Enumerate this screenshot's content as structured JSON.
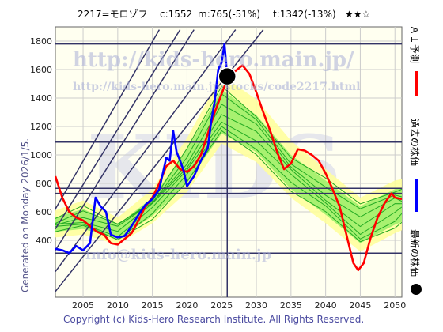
{
  "header": {
    "code_name": "2217=モロゾフ",
    "current": "c:1552",
    "min": "m:765(-51%)",
    "target": "t:1342(-13%)",
    "rating": "★★☆"
  },
  "side_text": "Generated on Monday 2026/1/5.",
  "footer": "Copyright (c) Kids-Hero Research Institute. All Rights Reserved.",
  "watermarks": {
    "url_main": "http://kids-hero.main.jp/",
    "url_code": "http://kids-hero.main.jp/stocks/code2217.html",
    "big": "KIDS",
    "email": "info@kids-hero.main.jp"
  },
  "legend": [
    {
      "label": "ＡＩ予測",
      "color": "#ff0000"
    },
    {
      "label": "過去の株価",
      "color": "#0000ff"
    },
    {
      "label": "最新の株価",
      "color": "#000000"
    }
  ],
  "colors": {
    "band_outer": "#ffff99",
    "band_inner": "#99ee66",
    "green_lines": "#22aa22",
    "ref_lines": "#333366",
    "plot_bg": "#fffff0"
  },
  "chart_data": {
    "type": "line",
    "x_range": [
      2001,
      2051
    ],
    "y_range": [
      0,
      1900
    ],
    "x_ticks": [
      2005,
      2010,
      2015,
      2020,
      2025,
      2030,
      2035,
      2040,
      2045,
      2050
    ],
    "y_ticks": [
      400,
      600,
      800,
      1000,
      1200,
      1400,
      1600,
      1800
    ],
    "grid": true,
    "current_point": {
      "x": 2025.8,
      "y": 1552
    },
    "vertical_marker_x": 2025.8,
    "horizontal_levels": [
      1780,
      1090,
      765,
      730,
      310
    ],
    "series": [
      {
        "name": "ＡＩ予測",
        "color": "#ff0000",
        "points": [
          [
            2001,
            850
          ],
          [
            2002,
            700
          ],
          [
            2003,
            600
          ],
          [
            2004,
            560
          ],
          [
            2005,
            540
          ],
          [
            2006,
            500
          ],
          [
            2007,
            460
          ],
          [
            2008,
            440
          ],
          [
            2009,
            380
          ],
          [
            2010,
            370
          ],
          [
            2011,
            410
          ],
          [
            2012,
            450
          ],
          [
            2013,
            540
          ],
          [
            2014,
            640
          ],
          [
            2015,
            700
          ],
          [
            2016,
            800
          ],
          [
            2017,
            920
          ],
          [
            2018,
            960
          ],
          [
            2019,
            900
          ],
          [
            2020,
            880
          ],
          [
            2021,
            920
          ],
          [
            2022,
            1000
          ],
          [
            2023,
            1150
          ],
          [
            2024,
            1300
          ],
          [
            2025,
            1430
          ],
          [
            2026,
            1560
          ],
          [
            2027,
            1590
          ],
          [
            2028,
            1630
          ],
          [
            2029,
            1570
          ],
          [
            2030,
            1440
          ],
          [
            2031,
            1300
          ],
          [
            2032,
            1170
          ],
          [
            2033,
            1020
          ],
          [
            2034,
            900
          ],
          [
            2035,
            940
          ],
          [
            2036,
            1040
          ],
          [
            2037,
            1030
          ],
          [
            2038,
            1000
          ],
          [
            2039,
            960
          ],
          [
            2040,
            870
          ],
          [
            2041,
            760
          ],
          [
            2042,
            640
          ],
          [
            2043,
            440
          ],
          [
            2044,
            240
          ],
          [
            2044.7,
            190
          ],
          [
            2045.5,
            240
          ],
          [
            2046.5,
            420
          ],
          [
            2047.5,
            560
          ],
          [
            2048.5,
            660
          ],
          [
            2049.5,
            730
          ],
          [
            2050,
            700
          ],
          [
            2051,
            690
          ]
        ]
      },
      {
        "name": "過去の株価",
        "color": "#0000ff",
        "points": [
          [
            2001,
            340
          ],
          [
            2002,
            330
          ],
          [
            2003,
            310
          ],
          [
            2004,
            360
          ],
          [
            2005,
            330
          ],
          [
            2006,
            380
          ],
          [
            2006.8,
            700
          ],
          [
            2007.5,
            640
          ],
          [
            2008.3,
            600
          ],
          [
            2009,
            440
          ],
          [
            2010,
            420
          ],
          [
            2011,
            430
          ],
          [
            2012,
            500
          ],
          [
            2013,
            580
          ],
          [
            2014,
            650
          ],
          [
            2015,
            690
          ],
          [
            2016,
            760
          ],
          [
            2017,
            980
          ],
          [
            2017.5,
            960
          ],
          [
            2018,
            1170
          ],
          [
            2018.5,
            1020
          ],
          [
            2019,
            960
          ],
          [
            2019.5,
            890
          ],
          [
            2020,
            780
          ],
          [
            2021,
            850
          ],
          [
            2022,
            960
          ],
          [
            2023,
            1050
          ],
          [
            2023.5,
            1240
          ],
          [
            2024,
            1380
          ],
          [
            2024.5,
            1600
          ],
          [
            2025,
            1650
          ],
          [
            2025.4,
            1780
          ],
          [
            2025.8,
            1552
          ]
        ]
      }
    ],
    "bands": [
      {
        "name": "outer",
        "color": "#ffff99",
        "upper": [
          [
            2001,
            610
          ],
          [
            2005,
            680
          ],
          [
            2010,
            560
          ],
          [
            2015,
            760
          ],
          [
            2020,
            1120
          ],
          [
            2025,
            1560
          ],
          [
            2030,
            1390
          ],
          [
            2035,
            1100
          ],
          [
            2040,
            900
          ],
          [
            2045,
            700
          ],
          [
            2050,
            820
          ],
          [
            2051,
            830
          ]
        ],
        "lower": [
          [
            2001,
            420
          ],
          [
            2005,
            440
          ],
          [
            2010,
            370
          ],
          [
            2015,
            520
          ],
          [
            2020,
            740
          ],
          [
            2025,
            1080
          ],
          [
            2030,
            950
          ],
          [
            2035,
            700
          ],
          [
            2040,
            520
          ],
          [
            2045,
            320
          ],
          [
            2050,
            450
          ],
          [
            2051,
            470
          ]
        ]
      },
      {
        "name": "inner",
        "color": "#99ee66",
        "upper": [
          [
            2001,
            560
          ],
          [
            2005,
            620
          ],
          [
            2010,
            510
          ],
          [
            2015,
            700
          ],
          [
            2020,
            1040
          ],
          [
            2025,
            1460
          ],
          [
            2030,
            1280
          ],
          [
            2035,
            1000
          ],
          [
            2040,
            820
          ],
          [
            2045,
            640
          ],
          [
            2050,
            760
          ],
          [
            2051,
            770
          ]
        ],
        "lower": [
          [
            2001,
            460
          ],
          [
            2005,
            480
          ],
          [
            2010,
            410
          ],
          [
            2015,
            570
          ],
          [
            2020,
            800
          ],
          [
            2025,
            1150
          ],
          [
            2030,
            1020
          ],
          [
            2035,
            760
          ],
          [
            2040,
            580
          ],
          [
            2045,
            380
          ],
          [
            2050,
            510
          ],
          [
            2051,
            530
          ]
        ]
      }
    ]
  }
}
